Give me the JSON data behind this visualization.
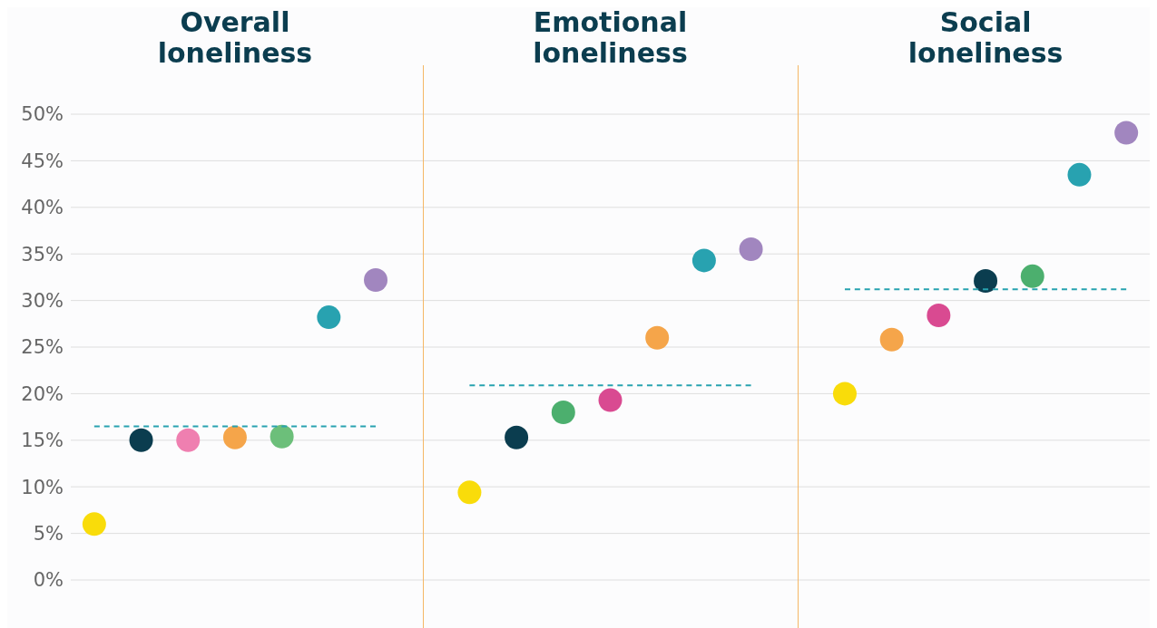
{
  "chart_data": {
    "type": "scatter",
    "annotations": [
      "Overall loneliness",
      "Emotional loneliness",
      "Social loneliness"
    ],
    "categories": [
      null,
      null,
      null,
      null,
      null,
      null,
      null,
      null,
      null,
      null,
      null,
      null,
      null,
      null,
      null,
      null,
      null,
      null,
      null,
      null,
      null,
      null,
      null
    ],
    "series": [
      {
        "values": [
          6,
          15,
          15,
          15.3,
          15.4,
          28.2,
          32.2,
          null,
          9.4,
          15.3,
          18,
          19.3,
          26,
          34.3,
          35.5,
          null,
          20,
          25.8,
          28.4,
          32.1,
          32.6,
          43.5,
          48
        ],
        "colors": [
          "#f9dc0a",
          "#0b3d4f",
          "#ef7fb0",
          "#f5a54a",
          "#6cbf7a",
          "#28a2b0",
          "#a186bf",
          null,
          "#f9dc0a",
          "#0b3d4f",
          "#4caf6e",
          "#d94a91",
          "#f5a54a",
          "#28a2b0",
          "#a186bf",
          null,
          "#f9dc0a",
          "#f5a54a",
          "#d94a91",
          "#0b3d4f",
          "#4caf6e",
          "#28a2b0",
          "#a186bf"
        ]
      },
      {
        "type": "line",
        "color": "#28a2b0",
        "line_style": "dashed",
        "marker": "none",
        "values": [
          16.5,
          16.5,
          16.5,
          16.5,
          16.5,
          16.5,
          16.5,
          null,
          null,
          null,
          null,
          null,
          null,
          null,
          null,
          null,
          null,
          null,
          null,
          null,
          null,
          null,
          null
        ]
      },
      {
        "type": "line",
        "color": "#28a2b0",
        "line_style": "dashed",
        "marker": "none",
        "values": [
          null,
          null,
          null,
          null,
          null,
          null,
          null,
          null,
          20.9,
          20.9,
          20.9,
          20.9,
          20.9,
          20.9,
          20.9,
          null,
          null,
          null,
          null,
          null,
          null,
          null,
          null
        ]
      },
      {
        "type": "line",
        "color": "#28a2b0",
        "line_style": "dashed",
        "marker": "none",
        "values": [
          null,
          null,
          null,
          null,
          null,
          null,
          null,
          null,
          null,
          null,
          null,
          null,
          null,
          null,
          null,
          null,
          31.2,
          31.2,
          31.2,
          31.2,
          31.2,
          31.2,
          31.2
        ]
      }
    ],
    "ylim": [
      0,
      50
    ],
    "yticks": [
      {
        "value": 0,
        "label": "0%"
      },
      {
        "value": 5,
        "label": "5%"
      },
      {
        "value": 10,
        "label": "10%"
      },
      {
        "value": 15,
        "label": "15%"
      },
      {
        "value": 20,
        "label": "20%"
      },
      {
        "value": 25,
        "label": "25%"
      },
      {
        "value": 30,
        "label": "30%"
      },
      {
        "value": 35,
        "label": "35%"
      },
      {
        "value": 40,
        "label": "40%"
      },
      {
        "value": 45,
        "label": "45%"
      },
      {
        "value": 50,
        "label": "50%"
      }
    ],
    "grid": "y",
    "marker": "circle",
    "tick_labels": "y"
  }
}
